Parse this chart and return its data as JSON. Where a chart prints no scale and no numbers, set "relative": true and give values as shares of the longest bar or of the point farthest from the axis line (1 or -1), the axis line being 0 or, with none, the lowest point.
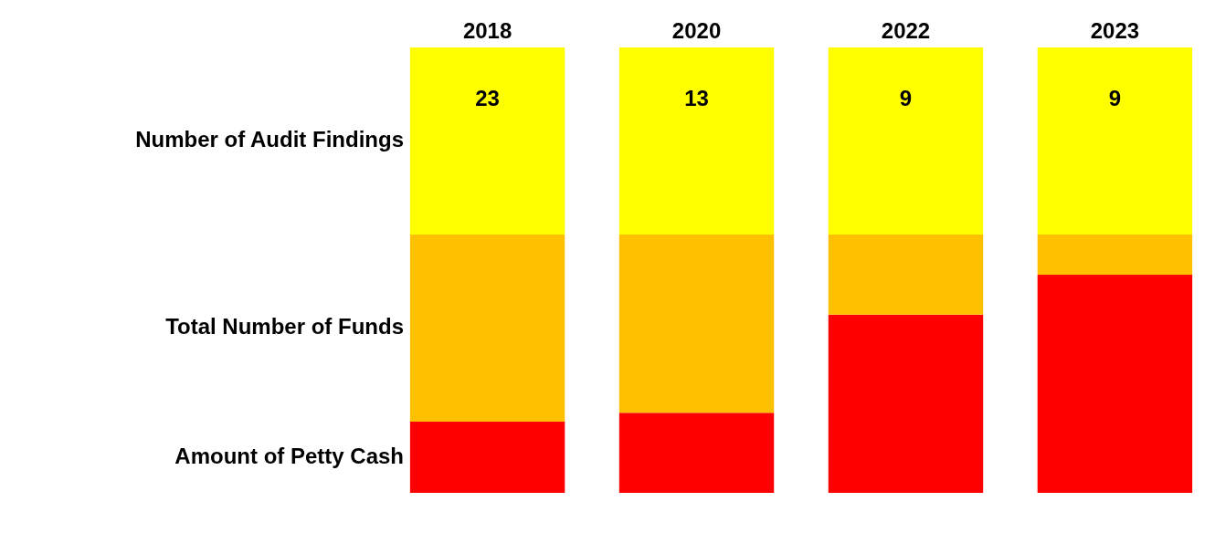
{
  "chart_data": {
    "type": "bar",
    "stacked": true,
    "relative": true,
    "legend": false,
    "categories": [
      "2018",
      "2020",
      "2022",
      "2023"
    ],
    "series": [
      {
        "name": "Amount of Petty Cash",
        "color": "#ff0000",
        "values": [
          0.16,
          0.18,
          0.4,
          0.49
        ]
      },
      {
        "name": "Total Number of Funds",
        "color": "#ffc000",
        "values": [
          0.42,
          0.4,
          0.18,
          0.09
        ]
      },
      {
        "name": "Number of Audit Findings",
        "color": "#ffff00",
        "values": [
          0.42,
          0.42,
          0.42,
          0.42
        ]
      }
    ],
    "annotations": [
      "23",
      "13",
      "9",
      "9"
    ]
  }
}
